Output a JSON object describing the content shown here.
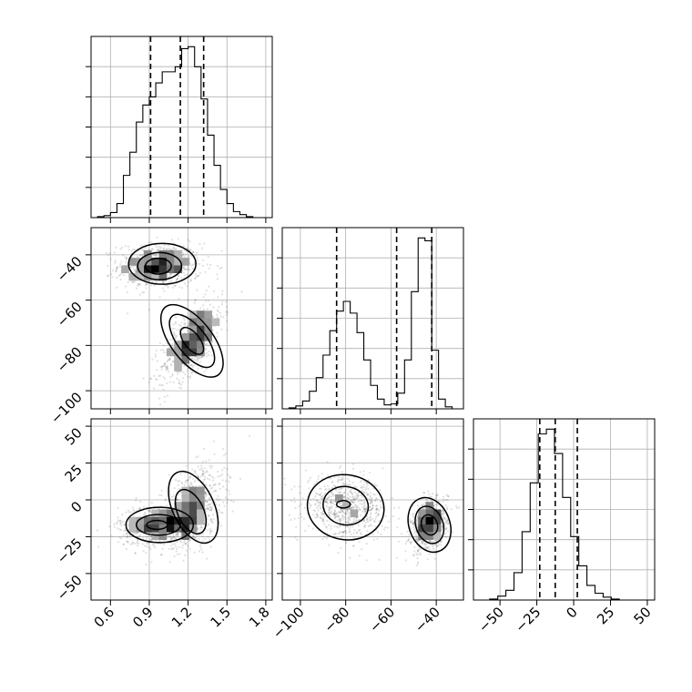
{
  "chart_data": {
    "type": "corner",
    "n_params": 3,
    "parameters": [
      {
        "range": [
          0.45,
          1.85
        ],
        "ticks": [
          0.6,
          0.9,
          1.2,
          1.5,
          1.8
        ],
        "tick_labels": [
          "0.6",
          "0.9",
          "1.2",
          "1.5",
          "1.8"
        ],
        "quantiles": [
          0.91,
          1.14,
          1.32
        ]
      },
      {
        "range": [
          -108,
          -28
        ],
        "ticks": [
          -100,
          -80,
          -60,
          -40
        ],
        "tick_labels": [
          "−100",
          "−80",
          "−60",
          "−40"
        ],
        "quantiles": [
          -84.0,
          -57.5,
          -42.0
        ]
      },
      {
        "range": [
          -68,
          55
        ],
        "ticks": [
          -50,
          -25,
          0,
          25,
          50
        ],
        "tick_labels": [
          "−50",
          "−25",
          "0",
          "25",
          "50"
        ],
        "quantiles": [
          -23.0,
          -12.5,
          2.5
        ]
      }
    ],
    "histograms": [
      {
        "bin_edges": [
          0.45,
          0.5,
          0.55,
          0.6,
          0.65,
          0.7,
          0.75,
          0.8,
          0.85,
          0.9,
          0.95,
          1.0,
          1.05,
          1.1,
          1.15,
          1.2,
          1.25,
          1.3,
          1.35,
          1.4,
          1.45,
          1.5,
          1.55,
          1.6,
          1.65,
          1.7,
          1.75,
          1.8,
          1.85
        ],
        "counts": [
          0,
          1,
          2,
          5,
          14,
          42,
          65,
          95,
          112,
          120,
          134,
          145,
          145,
          150,
          168,
          170,
          150,
          118,
          82,
          52,
          28,
          14,
          6,
          3,
          1,
          0,
          0,
          0
        ]
      },
      {
        "bin_edges": [
          -108,
          -105,
          -102,
          -99,
          -96,
          -93,
          -90,
          -87,
          -84,
          -81,
          -78,
          -75,
          -72,
          -69,
          -66,
          -63,
          -60,
          -57,
          -54,
          -51,
          -48,
          -45,
          -42,
          -39,
          -36,
          -33,
          -30,
          -28
        ],
        "counts": [
          0,
          1,
          3,
          8,
          18,
          32,
          55,
          80,
          100,
          110,
          98,
          78,
          50,
          24,
          10,
          4,
          5,
          16,
          50,
          120,
          175,
          172,
          60,
          10,
          2,
          0,
          0
        ]
      },
      {
        "bin_edges": [
          -68,
          -62.5,
          -57,
          -51.5,
          -46,
          -40.5,
          -35,
          -29.5,
          -24,
          -18.5,
          -13,
          -7.5,
          -2,
          3.5,
          9,
          14.5,
          20,
          25.5,
          31,
          36.5,
          42,
          47.5,
          53
        ],
        "counts": [
          0,
          0,
          1,
          4,
          10,
          28,
          70,
          120,
          170,
          175,
          150,
          105,
          65,
          35,
          15,
          7,
          3,
          1,
          0,
          0,
          0,
          0
        ]
      }
    ],
    "scatter_pairs": [
      {
        "row": 1,
        "col": 0,
        "clusters": [
          {
            "mean": [
              0.98,
              -45
            ],
            "sd": [
              0.16,
              5
            ],
            "corr": 0,
            "n": 700
          },
          {
            "mean": [
              1.23,
              -78
            ],
            "sd": [
              0.12,
              9
            ],
            "corr": 0.65,
            "n": 700
          }
        ],
        "contours": [
          [
            {
              "cx": 1.0,
              "cy": -44,
              "rx": 0.26,
              "ry": 9,
              "rot": 0
            },
            {
              "cx": 0.98,
              "cy": -45,
              "rx": 0.17,
              "ry": 6,
              "rot": 0
            },
            {
              "cx": 0.97,
              "cy": -45,
              "rx": 0.1,
              "ry": 3.5,
              "rot": 0
            }
          ],
          [
            {
              "cx": 1.23,
              "cy": -78,
              "rx": 0.16,
              "ry": 19,
              "rot": 38
            },
            {
              "cx": 1.23,
              "cy": -78,
              "rx": 0.11,
              "ry": 14,
              "rot": 38
            },
            {
              "cx": 1.23,
              "cy": -78,
              "rx": 0.06,
              "ry": 7,
              "rot": 38
            }
          ]
        ]
      },
      {
        "row": 2,
        "col": 0,
        "clusters": [
          {
            "mean": [
              0.98,
              -17
            ],
            "sd": [
              0.16,
              7
            ],
            "corr": 0.1,
            "n": 700
          },
          {
            "mean": [
              1.24,
              -5
            ],
            "sd": [
              0.12,
              14
            ],
            "corr": 0.4,
            "n": 700
          }
        ],
        "contours": [
          [
            {
              "cx": 0.98,
              "cy": -17,
              "rx": 0.26,
              "ry": 12,
              "rot": 0
            },
            {
              "cx": 0.97,
              "cy": -17,
              "rx": 0.17,
              "ry": 7,
              "rot": 0
            },
            {
              "cx": 0.96,
              "cy": -17,
              "rx": 0.08,
              "ry": 3,
              "rot": 0
            }
          ],
          [
            {
              "cx": 1.24,
              "cy": -5,
              "rx": 0.16,
              "ry": 26,
              "rot": 25
            },
            {
              "cx": 1.22,
              "cy": -8,
              "rx": 0.1,
              "ry": 16,
              "rot": 25
            }
          ]
        ]
      },
      {
        "row": 2,
        "col": 1,
        "clusters": [
          {
            "mean": [
              -80,
              -5
            ],
            "sd": [
              9,
              10
            ],
            "corr": -0.1,
            "n": 700
          },
          {
            "mean": [
              -43,
              -17
            ],
            "sd": [
              4,
              9
            ],
            "corr": 0.3,
            "n": 700
          }
        ],
        "contours": [
          [
            {
              "cx": -80,
              "cy": -5,
              "rx": 17,
              "ry": 22,
              "rot": -10
            },
            {
              "cx": -80,
              "cy": -4,
              "rx": 10,
              "ry": 13,
              "rot": -10
            },
            {
              "cx": -81,
              "cy": -3,
              "rx": 3,
              "ry": 2.5,
              "rot": 0
            }
          ],
          [
            {
              "cx": -43,
              "cy": -17,
              "rx": 9,
              "ry": 19,
              "rot": 20
            },
            {
              "cx": -43,
              "cy": -17,
              "rx": 6,
              "ry": 13,
              "rot": 20
            },
            {
              "cx": -43,
              "cy": -17,
              "rx": 3.5,
              "ry": 7,
              "rot": 20
            }
          ]
        ]
      }
    ],
    "grid": true
  }
}
